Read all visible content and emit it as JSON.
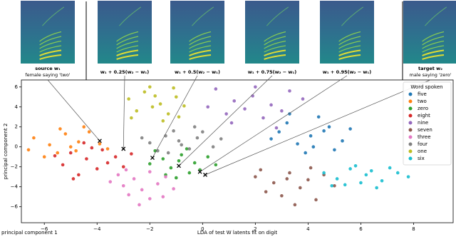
{
  "panels": [
    {
      "caption": [
        "source w₁",
        "female saying 'two'"
      ]
    },
    {
      "caption": [
        "w₁ + 0.25(w₂ − w₁)"
      ]
    },
    {
      "caption": [
        "w₁ + 0.5(w₂ − w₁)"
      ]
    },
    {
      "caption": [
        "w₁ + 0.75(w₂ − w₁)"
      ]
    },
    {
      "caption": [
        "w₁ + 0.95(w₂ − w₁)"
      ]
    },
    {
      "caption": [
        "target w₂",
        "male saying 'zero'"
      ]
    }
  ],
  "chart_data": {
    "type": "scatter",
    "xlabel": "LDA of test W latents fit on digit",
    "ylabel": "principal component 2",
    "corner_label": "principal component 1",
    "legend_title": "Word spoken",
    "legend": "upper right",
    "xlim": [
      -6.87,
      9.5
    ],
    "ylim": [
      -7.6,
      6.7
    ],
    "xticks": [
      {
        "value": -6,
        "label": "−6"
      },
      {
        "value": -4,
        "label": "−4"
      },
      {
        "value": -2,
        "label": "−2"
      },
      0,
      2,
      4,
      6,
      8
    ],
    "yticks": [
      {
        "value": -6,
        "label": "−6"
      },
      {
        "value": -4,
        "label": "−4"
      },
      {
        "value": -2,
        "label": "−2"
      },
      0,
      2,
      4,
      6
    ],
    "series": [
      {
        "name": "five",
        "color": "#1f77b4",
        "x": [
          3.2,
          4.1,
          4.8,
          5.3,
          3.6,
          4.4,
          2.9,
          5.0,
          3.9,
          4.6,
          3.3,
          5.6,
          4.2,
          2.6
        ],
        "y": [
          2.4,
          1.1,
          2.0,
          0.6,
          0.3,
          3.0,
          1.5,
          -0.3,
          -0.6,
          1.6,
          3.3,
          1.8,
          0.0,
          0.8
        ]
      },
      {
        "name": "two",
        "color": "#ff7f0e",
        "x": [
          -6.4,
          -5.8,
          -5.2,
          -4.7,
          -5.5,
          -6.0,
          -4.3,
          -5.0,
          -3.9,
          -6.6,
          -4.8,
          -5.4,
          -3.6,
          -4.5
        ],
        "y": [
          0.9,
          0.2,
          1.3,
          0.5,
          -0.6,
          -1.0,
          1.5,
          0.0,
          0.3,
          -0.3,
          -0.4,
          1.8,
          -0.2,
          2.0
        ]
      },
      {
        "name": "zero",
        "color": "#2ca02c",
        "x": [
          -1.5,
          -0.8,
          -0.3,
          -1.2,
          -0.5,
          0.2,
          -1.8,
          -0.9,
          -0.1,
          -1.4,
          -0.6,
          0.5,
          -2.0,
          -1.0
        ],
        "y": [
          -1.2,
          -0.8,
          -1.6,
          -2.1,
          -2.6,
          -1.0,
          -0.4,
          -1.4,
          -2.3,
          -2.8,
          -0.2,
          -1.8,
          -1.7,
          -3.1
        ]
      },
      {
        "name": "eight",
        "color": "#d62728",
        "x": [
          -5.0,
          -4.4,
          -3.8,
          -5.3,
          -4.0,
          -3.3,
          -4.7,
          -3.6,
          -5.6,
          -4.2,
          -3.0,
          -4.9,
          -2.7,
          -4.5
        ],
        "y": [
          -0.6,
          -1.2,
          -0.3,
          -1.8,
          -2.2,
          -1.0,
          -2.8,
          -1.6,
          -0.9,
          -0.1,
          -2.0,
          -3.2,
          -0.7,
          0.4
        ]
      },
      {
        "name": "nine",
        "color": "#9467bd",
        "x": [
          0.5,
          1.2,
          1.9,
          2.6,
          3.3,
          0.9,
          1.6,
          2.3,
          3.0,
          3.8,
          1.1,
          2.0,
          0.2,
          2.8
        ],
        "y": [
          5.8,
          4.6,
          5.1,
          4.2,
          5.6,
          3.3,
          3.8,
          2.9,
          3.6,
          4.8,
          2.4,
          6.0,
          4.0,
          1.9
        ]
      },
      {
        "name": "seven",
        "color": "#8c564b",
        "x": [
          2.0,
          2.7,
          3.3,
          4.0,
          4.6,
          2.4,
          3.0,
          3.7,
          4.3,
          5.0,
          3.5,
          2.2,
          4.1,
          3.2
        ],
        "y": [
          -3.0,
          -3.6,
          -2.6,
          -3.3,
          -2.8,
          -4.5,
          -4.9,
          -4.1,
          -5.3,
          -3.9,
          -5.8,
          -2.3,
          -2.1,
          -3.2
        ]
      },
      {
        "name": "three",
        "color": "#e377c2",
        "x": [
          -3.2,
          -2.6,
          -2.0,
          -1.4,
          -3.0,
          -2.3,
          -1.7,
          -2.8,
          -2.0,
          -1.1,
          -3.5,
          -2.4,
          -1.5,
          -2.9
        ],
        "y": [
          -2.8,
          -3.2,
          -2.5,
          -3.0,
          -3.9,
          -4.3,
          -3.7,
          -4.8,
          -5.2,
          -4.2,
          -3.5,
          -5.8,
          -5.0,
          -2.3
        ]
      },
      {
        "name": "four",
        "color": "#7f7f7f",
        "x": [
          -2.0,
          -1.4,
          -0.8,
          -0.2,
          0.4,
          -1.7,
          -1.1,
          -0.5,
          0.0,
          -2.3,
          -0.9,
          0.7,
          -1.3,
          -0.3
        ],
        "y": [
          0.4,
          1.1,
          0.2,
          0.9,
          0.0,
          -0.4,
          1.6,
          -0.2,
          1.5,
          0.9,
          0.6,
          0.8,
          -0.6,
          2.0
        ]
      },
      {
        "name": "one",
        "color": "#bcbd22",
        "x": [
          -2.8,
          -2.2,
          -1.6,
          -1.0,
          -2.5,
          -1.9,
          -1.3,
          -0.7,
          -2.0,
          -1.5,
          -2.7,
          -1.1,
          -1.8,
          -0.9
        ],
        "y": [
          4.8,
          5.5,
          4.3,
          5.0,
          3.6,
          4.0,
          3.3,
          4.1,
          6.0,
          2.6,
          2.9,
          5.9,
          5.1,
          3.0
        ]
      },
      {
        "name": "six",
        "color": "#17becf",
        "x": [
          4.6,
          5.1,
          5.6,
          6.2,
          6.8,
          7.4,
          5.4,
          6.0,
          6.6,
          7.1,
          5.8,
          4.9,
          6.4,
          7.8
        ],
        "y": [
          -2.6,
          -3.2,
          -2.2,
          -2.8,
          -3.4,
          -2.6,
          -3.8,
          -3.6,
          -4.1,
          -2.1,
          -1.9,
          -3.9,
          -2.4,
          -3.0
        ]
      }
    ],
    "interpolation_points": {
      "color": "#000000",
      "x": [
        -3.9,
        -3.0,
        -1.9,
        -0.9,
        -0.1,
        0.1
      ],
      "y": [
        0.6,
        -0.2,
        -1.1,
        -1.9,
        -2.5,
        -2.8
      ]
    }
  }
}
